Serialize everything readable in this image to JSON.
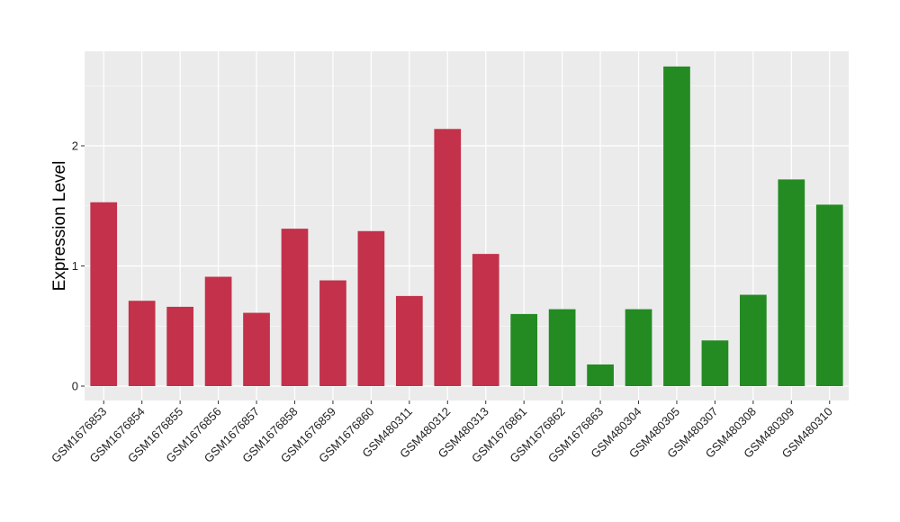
{
  "chart_data": {
    "type": "bar",
    "title": "",
    "xlabel": "",
    "ylabel": "Expression Level",
    "ylim": [
      0,
      2.8
    ],
    "yticks": [
      0,
      1,
      2
    ],
    "grid": true,
    "legend": "none",
    "colors": {
      "panel_background": "#ebebeb",
      "grid": "#ffffff",
      "group_a": "#c3314b",
      "group_b": "#238b22"
    },
    "categories": [
      "GSM1676853",
      "GSM1676854",
      "GSM1676855",
      "GSM1676856",
      "GSM1676857",
      "GSM1676858",
      "GSM1676859",
      "GSM1676860",
      "GSM480311",
      "GSM480312",
      "GSM480313",
      "GSM1676861",
      "GSM1676862",
      "GSM1676863",
      "GSM480304",
      "GSM480305",
      "GSM480307",
      "GSM480308",
      "GSM480309",
      "GSM480310"
    ],
    "values": [
      1.53,
      0.71,
      0.66,
      0.91,
      0.61,
      1.31,
      0.88,
      1.29,
      0.75,
      2.14,
      1.1,
      0.6,
      0.64,
      0.18,
      0.64,
      2.66,
      0.38,
      0.76,
      1.72,
      1.51
    ],
    "groups": [
      "a",
      "a",
      "a",
      "a",
      "a",
      "a",
      "a",
      "a",
      "a",
      "a",
      "a",
      "b",
      "b",
      "b",
      "b",
      "b",
      "b",
      "b",
      "b",
      "b"
    ]
  }
}
